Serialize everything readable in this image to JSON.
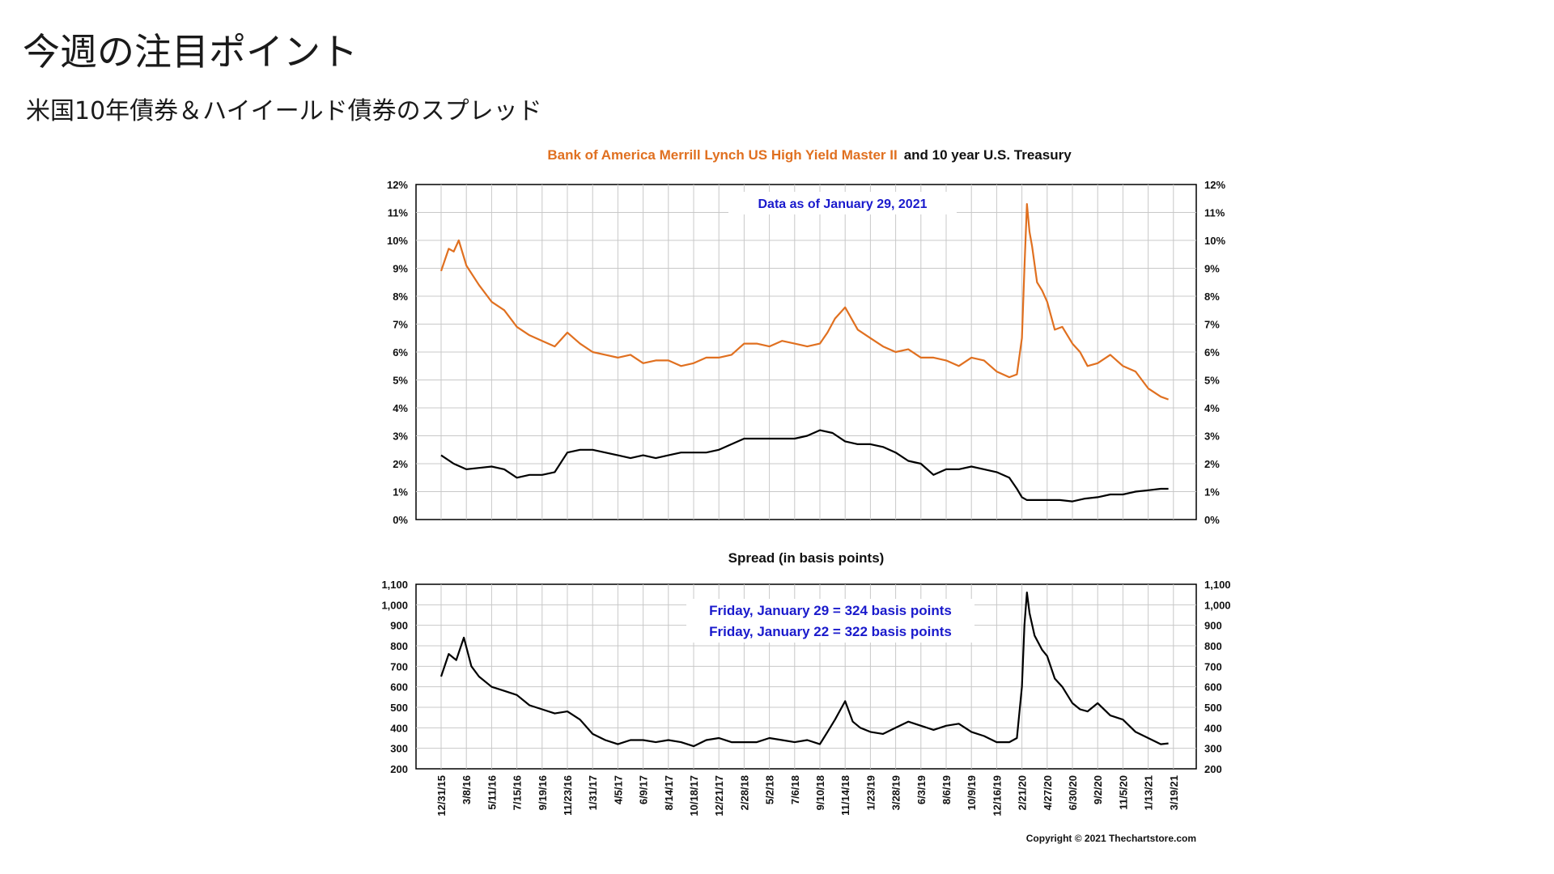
{
  "slide": {
    "title": "今週の注目ポイント",
    "subtitle": "米国10年債券＆ハイイールド債券のスプレッド"
  },
  "colors": {
    "high_yield": "#e07020",
    "treasury": "#000000",
    "annotation": "#1a1acc",
    "grid": "#c8c8c8"
  },
  "chart_data": [
    {
      "type": "line",
      "title_parts": [
        "Bank of America Merrill Lynch US High Yield Master II",
        "and 10 year U.S. Treasury"
      ],
      "annotation": "Data as of January 29, 2021",
      "y_ticks": [
        "0%",
        "1%",
        "2%",
        "3%",
        "4%",
        "5%",
        "6%",
        "7%",
        "8%",
        "9%",
        "10%",
        "11%",
        "12%"
      ],
      "ylim": [
        0,
        12
      ],
      "x_ticks": [
        "12/31/15",
        "3/8/16",
        "5/11/16",
        "7/15/16",
        "9/19/16",
        "11/23/16",
        "1/31/17",
        "4/5/17",
        "6/9/17",
        "8/14/17",
        "10/18/17",
        "12/21/17",
        "2/28/18",
        "5/2/18",
        "7/6/18",
        "9/10/18",
        "11/14/18",
        "1/23/19",
        "3/28/19",
        "6/3/19",
        "8/6/19",
        "10/9/19",
        "12/16/19",
        "2/21/20",
        "4/27/20",
        "6/30/20",
        "9/2/20",
        "11/5/20",
        "1/13/21",
        "3/19/21"
      ],
      "series": [
        {
          "name": "Bank of America Merrill Lynch US High Yield Master II",
          "color": "#e07020",
          "x": [
            0,
            0.15,
            0.3,
            0.5,
            0.7,
            1.0,
            1.5,
            2.0,
            2.5,
            3.0,
            3.5,
            4.0,
            4.5,
            5.0,
            5.5,
            6.0,
            6.5,
            7.0,
            7.5,
            8.0,
            8.5,
            9.0,
            9.5,
            10.0,
            10.5,
            11.0,
            11.5,
            12.0,
            12.5,
            13.0,
            13.5,
            14.0,
            14.5,
            15.0,
            15.3,
            15.6,
            16.0,
            16.5,
            17.0,
            17.5,
            18.0,
            18.5,
            19.0,
            19.5,
            20.0,
            20.5,
            21.0,
            21.5,
            22.0,
            22.5,
            22.8,
            23.0,
            23.1,
            23.2,
            23.3,
            23.4,
            23.6,
            23.8,
            24.0,
            24.3,
            24.6,
            25.0,
            25.3,
            25.6,
            26.0,
            26.5,
            27.0,
            27.5,
            28.0,
            28.5,
            28.8
          ],
          "y": [
            8.9,
            9.3,
            9.7,
            9.6,
            10.0,
            9.1,
            8.4,
            7.8,
            7.5,
            6.9,
            6.6,
            6.4,
            6.2,
            6.7,
            6.3,
            6.0,
            5.9,
            5.8,
            5.9,
            5.6,
            5.7,
            5.7,
            5.5,
            5.6,
            5.8,
            5.8,
            5.9,
            6.3,
            6.3,
            6.2,
            6.4,
            6.3,
            6.2,
            6.3,
            6.7,
            7.2,
            7.6,
            6.8,
            6.5,
            6.2,
            6.0,
            6.1,
            5.8,
            5.8,
            5.7,
            5.5,
            5.8,
            5.7,
            5.3,
            5.1,
            5.2,
            6.5,
            9.0,
            11.3,
            10.3,
            9.8,
            8.5,
            8.2,
            7.8,
            6.8,
            6.9,
            6.3,
            6.0,
            5.5,
            5.6,
            5.9,
            5.5,
            5.3,
            4.7,
            4.4,
            4.3
          ]
        },
        {
          "name": "10 year U.S. Treasury",
          "color": "#000000",
          "x": [
            0,
            0.5,
            1.0,
            1.5,
            2.0,
            2.5,
            3.0,
            3.5,
            4.0,
            4.5,
            5.0,
            5.5,
            6.0,
            6.5,
            7.0,
            7.5,
            8.0,
            8.5,
            9.0,
            9.5,
            10.0,
            10.5,
            11.0,
            11.5,
            12.0,
            12.5,
            13.0,
            13.5,
            14.0,
            14.5,
            15.0,
            15.5,
            16.0,
            16.5,
            17.0,
            17.5,
            18.0,
            18.5,
            19.0,
            19.5,
            20.0,
            20.5,
            21.0,
            21.5,
            22.0,
            22.5,
            22.8,
            23.0,
            23.2,
            23.5,
            24.0,
            24.5,
            25.0,
            25.5,
            26.0,
            26.5,
            27.0,
            27.5,
            28.0,
            28.5,
            28.8
          ],
          "y": [
            2.3,
            2.0,
            1.8,
            1.85,
            1.9,
            1.8,
            1.5,
            1.6,
            1.6,
            1.7,
            2.4,
            2.5,
            2.5,
            2.4,
            2.3,
            2.2,
            2.3,
            2.2,
            2.3,
            2.4,
            2.4,
            2.4,
            2.5,
            2.7,
            2.9,
            2.9,
            2.9,
            2.9,
            2.9,
            3.0,
            3.2,
            3.1,
            2.8,
            2.7,
            2.7,
            2.6,
            2.4,
            2.1,
            2.0,
            1.6,
            1.8,
            1.8,
            1.9,
            1.8,
            1.7,
            1.5,
            1.1,
            0.8,
            0.7,
            0.7,
            0.7,
            0.7,
            0.65,
            0.75,
            0.8,
            0.9,
            0.9,
            1.0,
            1.05,
            1.1,
            1.1
          ]
        }
      ]
    },
    {
      "type": "line",
      "title": "Spread (in basis points)",
      "annotations": [
        "Friday, January 29 = 324 basis points",
        "Friday, January 22 = 322 basis points"
      ],
      "y_ticks": [
        "200",
        "300",
        "400",
        "500",
        "600",
        "700",
        "800",
        "900",
        "1,000",
        "1,100"
      ],
      "ylim": [
        200,
        1100
      ],
      "x_ticks": [
        "12/31/15",
        "3/8/16",
        "5/11/16",
        "7/15/16",
        "9/19/16",
        "11/23/16",
        "1/31/17",
        "4/5/17",
        "6/9/17",
        "8/14/17",
        "10/18/17",
        "12/21/17",
        "2/28/18",
        "5/2/18",
        "7/6/18",
        "9/10/18",
        "11/14/18",
        "1/23/19",
        "3/28/19",
        "6/3/19",
        "8/6/19",
        "10/9/19",
        "12/16/19",
        "2/21/20",
        "4/27/20",
        "6/30/20",
        "9/2/20",
        "11/5/20",
        "1/13/21",
        "3/19/21"
      ],
      "series": [
        {
          "color": "#000000",
          "x": [
            0,
            0.3,
            0.6,
            0.9,
            1.2,
            1.5,
            2.0,
            2.5,
            3.0,
            3.5,
            4.0,
            4.5,
            5.0,
            5.5,
            6.0,
            6.5,
            7.0,
            7.5,
            8.0,
            8.5,
            9.0,
            9.5,
            10.0,
            10.5,
            11.0,
            11.5,
            12.0,
            12.5,
            13.0,
            13.5,
            14.0,
            14.5,
            15.0,
            15.3,
            15.6,
            16.0,
            16.3,
            16.6,
            17.0,
            17.5,
            18.0,
            18.5,
            19.0,
            19.5,
            20.0,
            20.5,
            21.0,
            21.5,
            22.0,
            22.5,
            22.8,
            23.0,
            23.1,
            23.2,
            23.3,
            23.5,
            23.8,
            24.0,
            24.3,
            24.6,
            25.0,
            25.3,
            25.6,
            26.0,
            26.5,
            27.0,
            27.5,
            28.0,
            28.5,
            28.8
          ],
          "y": [
            650,
            760,
            730,
            840,
            700,
            650,
            600,
            580,
            560,
            510,
            490,
            470,
            480,
            440,
            370,
            340,
            320,
            340,
            340,
            330,
            340,
            330,
            310,
            340,
            350,
            330,
            330,
            330,
            350,
            340,
            330,
            340,
            320,
            380,
            440,
            530,
            430,
            400,
            380,
            370,
            400,
            430,
            410,
            390,
            410,
            420,
            380,
            360,
            330,
            330,
            350,
            600,
            900,
            1060,
            960,
            850,
            780,
            750,
            640,
            600,
            520,
            490,
            480,
            520,
            460,
            440,
            380,
            350,
            320,
            324
          ]
        }
      ]
    }
  ],
  "copyright": "Copyright © 2021 Thechartstore.com"
}
